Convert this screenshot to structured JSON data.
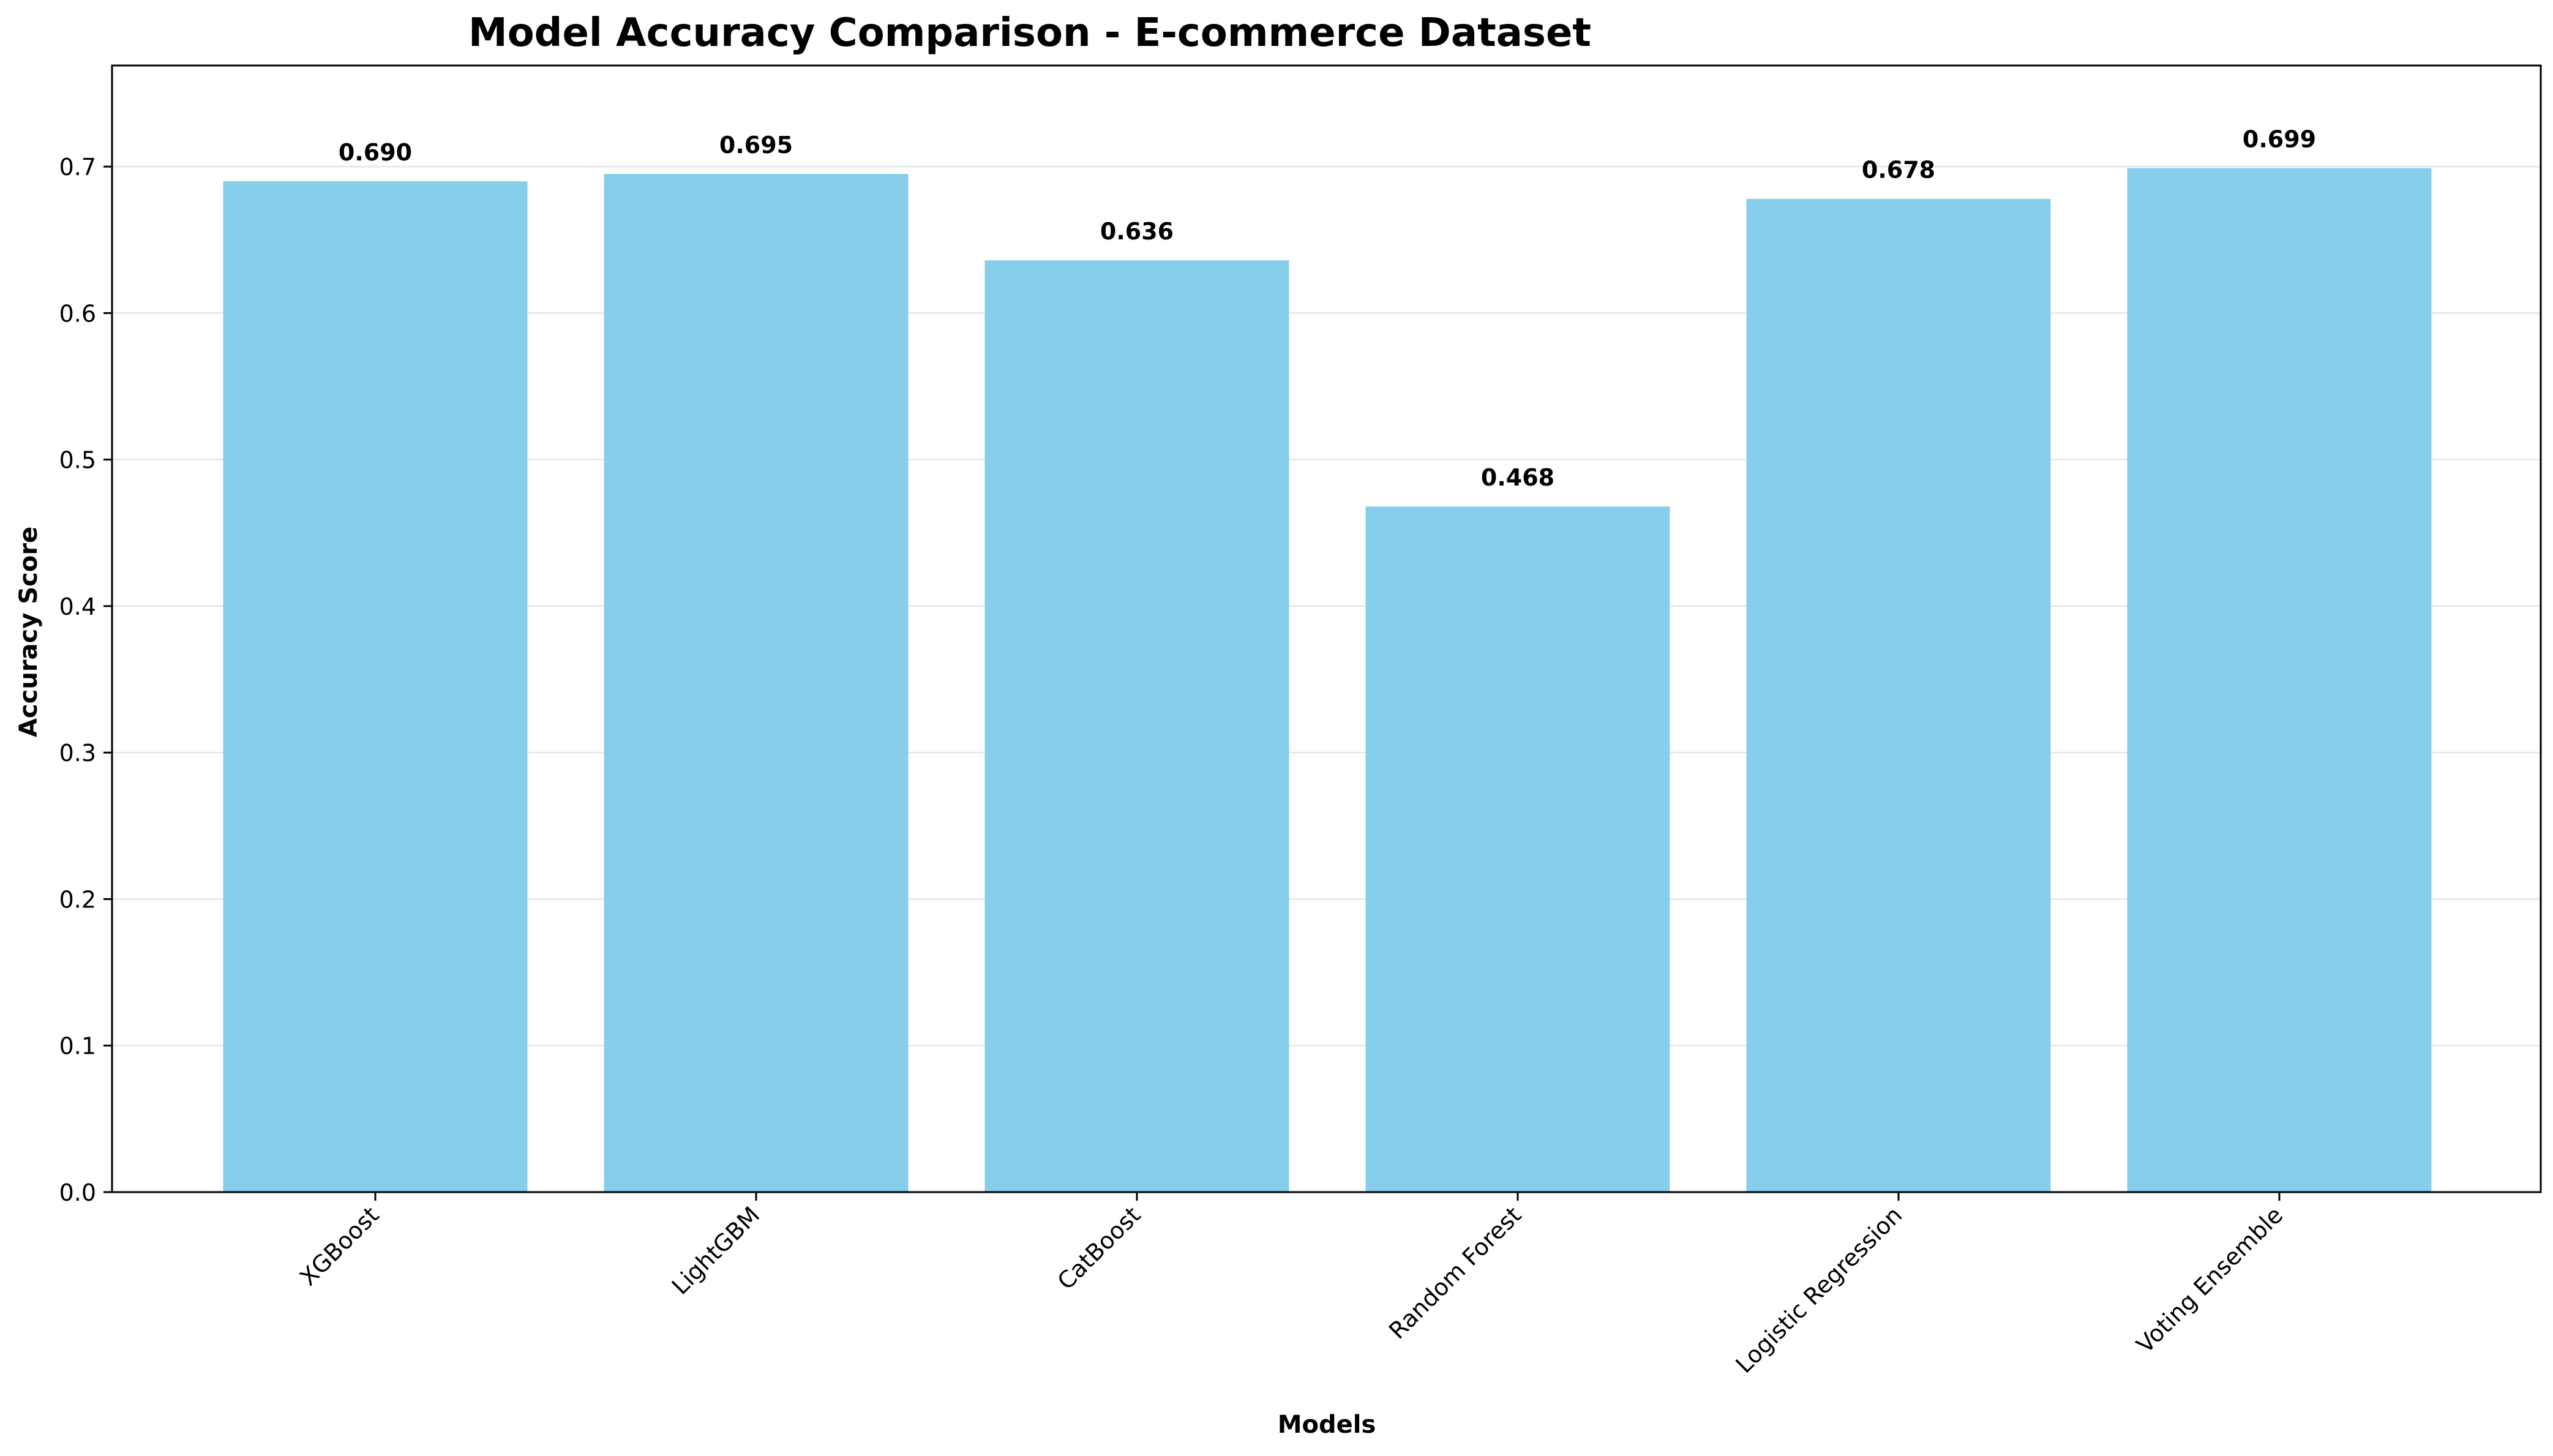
{
  "chart_data": {
    "type": "bar",
    "title": "Model Accuracy Comparison - E-commerce Dataset",
    "xlabel": "Models",
    "ylabel": "Accuracy Score",
    "categories": [
      "XGBoost",
      "LightGBM",
      "CatBoost",
      "Random Forest",
      "Logistic Regression",
      "Voting Ensemble"
    ],
    "values": [
      0.69,
      0.695,
      0.636,
      0.468,
      0.678,
      0.699
    ],
    "value_labels": [
      "0.690",
      "0.695",
      "0.636",
      "0.468",
      "0.678",
      "0.699"
    ],
    "ylim": [
      0,
      0.769
    ],
    "yticks": [
      0.0,
      0.1,
      0.2,
      0.3,
      0.4,
      0.5,
      0.6,
      0.7
    ],
    "ytick_labels": [
      "0.0",
      "0.1",
      "0.2",
      "0.3",
      "0.4",
      "0.5",
      "0.6",
      "0.7"
    ],
    "grid": "horizontal",
    "legend": "none",
    "bar_color": "#87CEEB",
    "label_color": "#000000",
    "grid_color": "#e6e6e6"
  }
}
